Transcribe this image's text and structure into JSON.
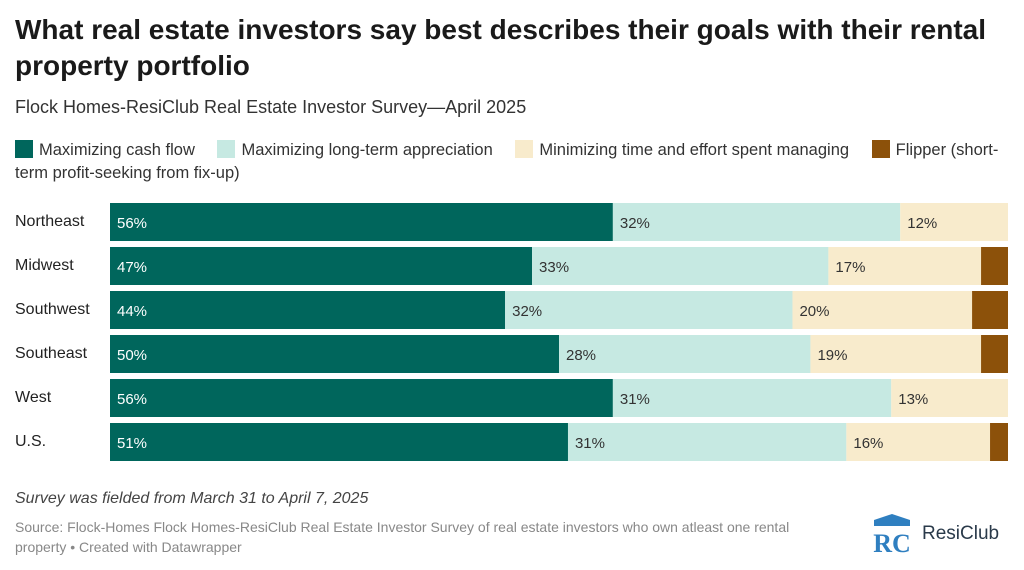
{
  "header": {
    "title": "What real estate investors say best describes their goals with their rental property portfolio",
    "subtitle": "Flock Homes-ResiClub Real Estate Investor Survey—April 2025"
  },
  "chart_data": {
    "type": "bar",
    "orientation": "horizontal",
    "stacked": true,
    "normalized": true,
    "title": "What real estate investors say best describes their goals with their rental property portfolio",
    "subtitle": "Flock Homes-ResiClub Real Estate Investor Survey—April 2025",
    "categories": [
      "Northeast",
      "Midwest",
      "Southwest",
      "Southeast",
      "West",
      "U.S."
    ],
    "series": [
      {
        "name": "Maximizing cash flow",
        "color": "#00665c",
        "values": [
          56,
          47,
          44,
          50,
          56,
          51
        ],
        "labels": [
          "56%",
          "47%",
          "44%",
          "50%",
          "56%",
          "51%"
        ],
        "label_color": "#ffffff"
      },
      {
        "name": "Maximizing long-term appreciation",
        "color": "#c6e9e2",
        "values": [
          32,
          33,
          32,
          28,
          31,
          31
        ],
        "labels": [
          "32%",
          "33%",
          "32%",
          "28%",
          "31%",
          "31%"
        ],
        "label_color": "#333333"
      },
      {
        "name": "Minimizing time and effort spent managing",
        "color": "#f8ebcc",
        "values": [
          12,
          17,
          20,
          19,
          13,
          16
        ],
        "labels": [
          "12%",
          "17%",
          "20%",
          "19%",
          "13%",
          "16%"
        ],
        "label_color": "#333333"
      },
      {
        "name": "Flipper (short-term profit-seeking from fix-up)",
        "color": "#8c510a",
        "values": [
          0,
          3,
          4,
          3,
          0,
          2
        ],
        "labels": [
          "",
          "",
          "",
          "",
          "",
          ""
        ],
        "label_color": "#ffffff"
      }
    ],
    "xlim": [
      0,
      100
    ],
    "legend_position": "top",
    "grid": false
  },
  "footer": {
    "note": "Survey was fielded from March 31 to April 7, 2025",
    "source": "Source: Flock-Homes Flock Homes-ResiClub Real Estate Investor Survey of real estate investors who own atleast one rental property • Created with Datawrapper",
    "logo_text": "ResiClub",
    "logo_mark": "RC"
  }
}
